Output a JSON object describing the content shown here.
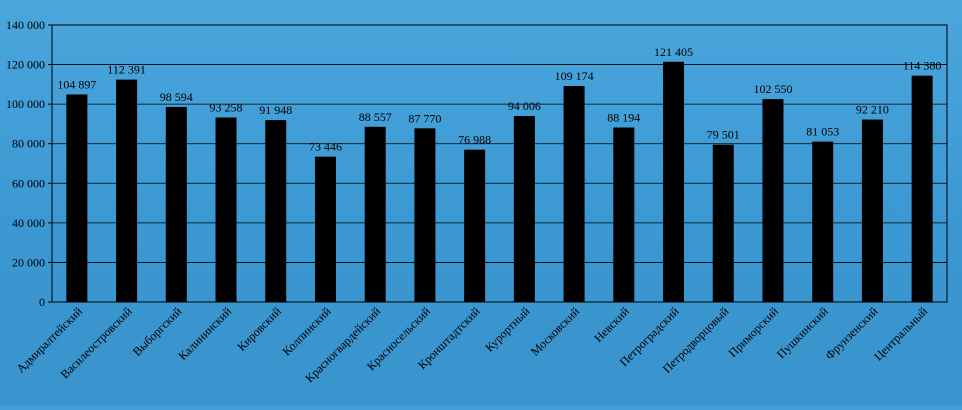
{
  "chart_data": {
    "type": "bar",
    "title": "",
    "xlabel": "",
    "ylabel": "",
    "ylim": [
      0,
      140000
    ],
    "yticks": [
      "0",
      "20 000",
      "40 000",
      "60 000",
      "80 000",
      "100 000",
      "120 000",
      "140 000"
    ],
    "grid": true,
    "legend": "none",
    "bar_color": "#000000",
    "categories": [
      "Адмиралтейский",
      "Василеостровский",
      "Выборгский",
      "Калининский",
      "Кировский",
      "Колпинский",
      "Красногвардейский",
      "Красносельский",
      "Кронштадтский",
      "Курортный",
      "Московский",
      "Невский",
      "Петроградский",
      "Петродворцовый",
      "Приморский",
      "Пушкинский",
      "Фрунзенский",
      "Центральный"
    ],
    "values": [
      104897,
      112391,
      98594,
      93258,
      91948,
      73446,
      88557,
      87770,
      76988,
      94006,
      109174,
      88194,
      121405,
      79501,
      102550,
      81053,
      92210,
      114380
    ],
    "data_labels": [
      "104 897",
      "112 391",
      "98 594",
      "93 258",
      "91 948",
      "73 446",
      "88 557",
      "87 770",
      "76 988",
      "94 006",
      "109 174",
      "88 194",
      "121 405",
      "79 501",
      "102 550",
      "81 053",
      "92 210",
      "114 380"
    ]
  }
}
